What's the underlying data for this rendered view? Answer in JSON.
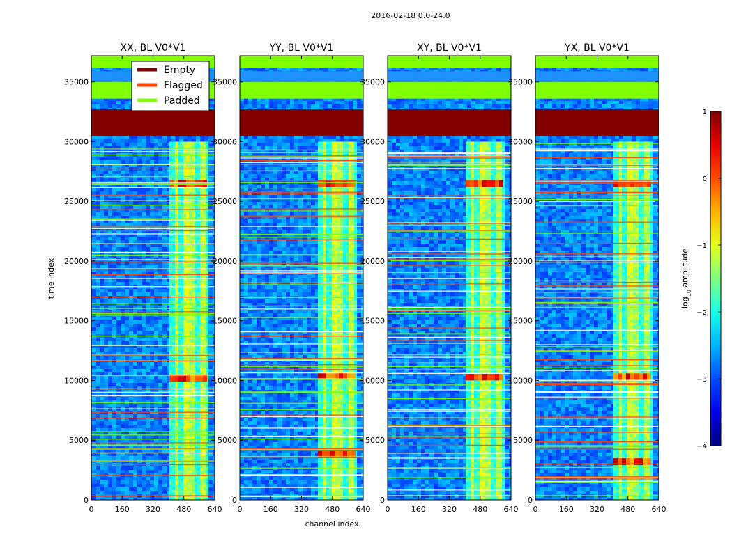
{
  "chart_data": {
    "type": "heatmap",
    "title": "2016-02-18 0.0-24.0",
    "xlabel": "channel index",
    "ylabel": "time index",
    "xlim": [
      0,
      640
    ],
    "ylim": [
      0,
      37200
    ],
    "xticks": [
      0,
      160,
      320,
      480,
      640
    ],
    "yticks": [
      0,
      5000,
      10000,
      15000,
      20000,
      25000,
      30000,
      35000
    ],
    "panels": [
      {
        "title": "XX, BL V0*V1",
        "bright_band": [
          405,
          600
        ],
        "hot_rows": [
          26500,
          10200
        ]
      },
      {
        "title": "YY, BL V0*V1",
        "bright_band": [
          405,
          600
        ],
        "hot_rows": [
          26500,
          10400,
          3800
        ]
      },
      {
        "title": "XY, BL V0*V1",
        "bright_band": [
          405,
          600
        ],
        "hot_rows": [
          26500,
          10300
        ]
      },
      {
        "title": "YX, BL V0*V1",
        "bright_band": [
          405,
          600
        ],
        "hot_rows": [
          26500,
          10300,
          3200
        ]
      }
    ],
    "masked_regions": [
      {
        "label": "Empty",
        "y_range": [
          30500,
          32700
        ],
        "color": "#800000"
      },
      {
        "label": "Padded",
        "y_range": [
          33600,
          35000
        ],
        "color": "#7fff00"
      },
      {
        "label": "Padded",
        "y_range": [
          36200,
          37200
        ],
        "color": "#7fff00"
      }
    ],
    "legend": {
      "position": "upper-right",
      "entries": [
        {
          "label": "Empty",
          "color": "#800000"
        },
        {
          "label": "Flagged",
          "color": "#ff4500"
        },
        {
          "label": "Padded",
          "color": "#7fff00"
        }
      ]
    },
    "colorbar": {
      "label": "log",
      "label_sub": "10",
      "label_rest": " amplitude",
      "range": [
        -4,
        1
      ],
      "ticks": [
        1,
        0,
        -1,
        -2,
        -3,
        -4
      ],
      "tick_labels": [
        "1",
        "0",
        "−1",
        "−2",
        "−3",
        "−4"
      ],
      "colormap": "jet"
    }
  }
}
